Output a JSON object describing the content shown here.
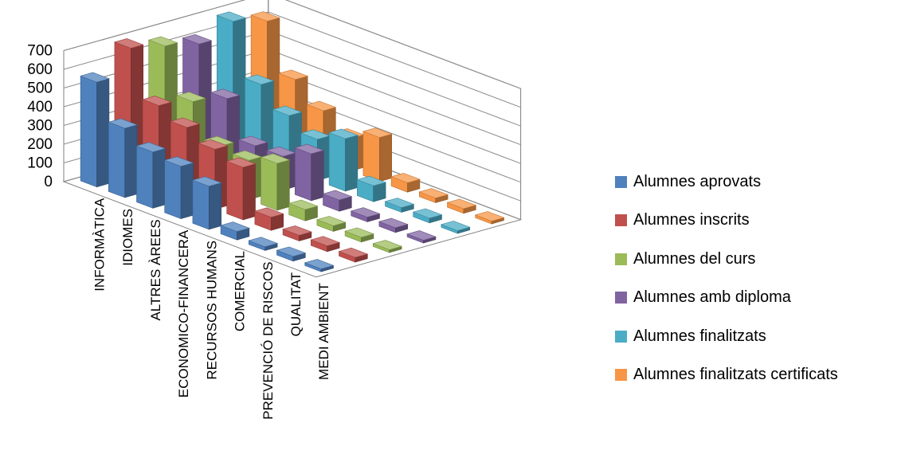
{
  "chart_data": {
    "type": "bar",
    "variant": "3d-column",
    "title": "",
    "xlabel": "",
    "ylabel": "",
    "ylim": [
      0,
      700
    ],
    "yticks": [
      0,
      100,
      200,
      300,
      400,
      500,
      600,
      700
    ],
    "grid": true,
    "legend_position": "right",
    "categories": [
      "INFORMÀTICA",
      "IDIOMES",
      "ALTRES ÀREES",
      "ECONOMICO-FINANCERA",
      "RECURSOS HUMANS",
      "COMERCIAL",
      "PREVENCIÓ DE RISCOS",
      "QUALITAT",
      "MEDI AMBIENT"
    ],
    "series": [
      {
        "name": "Alumnes aprovats",
        "color": "#4F81BD",
        "values": [
          560,
          370,
          300,
          280,
          230,
          45,
          20,
          25,
          15
        ]
      },
      {
        "name": "Alumnes inscrits",
        "color": "#C0504D",
        "values": [
          690,
          440,
          380,
          320,
          280,
          70,
          30,
          30,
          25
        ]
      },
      {
        "name": "Alumnes del curs",
        "color": "#9BBB59",
        "values": [
          650,
          410,
          230,
          210,
          250,
          60,
          30,
          25,
          15
        ]
      },
      {
        "name": "Alumnes amb diploma",
        "color": "#8064A2",
        "values": [
          610,
          375,
          180,
          180,
          250,
          60,
          25,
          25,
          15
        ]
      },
      {
        "name": "Alumnes finalitzats",
        "color": "#4BACC6",
        "values": [
          680,
          400,
          290,
          220,
          280,
          85,
          25,
          25,
          15
        ]
      },
      {
        "name": "Alumnes finalitzats certificats",
        "color": "#F79646",
        "values": [
          630,
          375,
          265,
          175,
          235,
          50,
          25,
          25,
          15
        ]
      }
    ]
  }
}
